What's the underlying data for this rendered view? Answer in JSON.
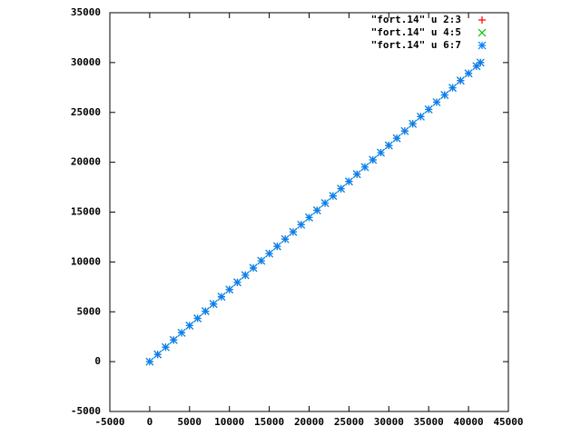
{
  "chart_data": {
    "type": "scatter",
    "x": [
      0,
      1000,
      2000,
      3000,
      4000,
      5000,
      6000,
      7000,
      8000,
      9000,
      10000,
      11000,
      12000,
      13000,
      14000,
      15000,
      16000,
      17000,
      18000,
      19000,
      20000,
      21000,
      22000,
      23000,
      24000,
      25000,
      26000,
      27000,
      28000,
      29000,
      30000,
      31000,
      32000,
      33000,
      34000,
      35000,
      36000,
      37000,
      38000,
      39000,
      40000,
      41000,
      41500
    ],
    "series": [
      {
        "name": "\"fort.14\" u 2:3",
        "color": "#ff0000",
        "marker": "plus",
        "values": [
          0,
          723,
          1446,
          2169,
          2892,
          3615,
          4337,
          5060,
          5783,
          6506,
          7229,
          7952,
          8675,
          9398,
          10121,
          10844,
          11566,
          12289,
          13012,
          13735,
          14458,
          15181,
          15904,
          16627,
          17350,
          18073,
          18795,
          19518,
          20241,
          20964,
          21687,
          22410,
          23133,
          23856,
          24579,
          25302,
          26024,
          26747,
          27470,
          28193,
          28916,
          29639,
          30000
        ]
      },
      {
        "name": "\"fort.14\" u 4:5",
        "color": "#00c000",
        "marker": "cross",
        "values": [
          0,
          723,
          1446,
          2169,
          2892,
          3615,
          4337,
          5060,
          5783,
          6506,
          7229,
          7952,
          8675,
          9398,
          10121,
          10844,
          11566,
          12289,
          13012,
          13735,
          14458,
          15181,
          15904,
          16627,
          17350,
          18073,
          18795,
          19518,
          20241,
          20964,
          21687,
          22410,
          23133,
          23856,
          24579,
          25302,
          26024,
          26747,
          27470,
          28193,
          28916,
          29639,
          30000
        ]
      },
      {
        "name": "\"fort.14\" u 6:7",
        "color": "#0080ff",
        "marker": "star",
        "values": [
          0,
          723,
          1446,
          2169,
          2892,
          3615,
          4337,
          5060,
          5783,
          6506,
          7229,
          7952,
          8675,
          9398,
          10121,
          10844,
          11566,
          12289,
          13012,
          13735,
          14458,
          15181,
          15904,
          16627,
          17350,
          18073,
          18795,
          19518,
          20241,
          20964,
          21687,
          22410,
          23133,
          23856,
          24579,
          25302,
          26024,
          26747,
          27470,
          28193,
          28916,
          29639,
          30000
        ]
      }
    ],
    "xlim": [
      -5000,
      45000
    ],
    "ylim": [
      -5000,
      35000
    ],
    "xticks": [
      -5000,
      0,
      5000,
      10000,
      15000,
      20000,
      25000,
      30000,
      35000,
      40000,
      45000
    ],
    "yticks": [
      -5000,
      0,
      5000,
      10000,
      15000,
      20000,
      25000,
      30000,
      35000
    ],
    "legend": "top-right"
  }
}
